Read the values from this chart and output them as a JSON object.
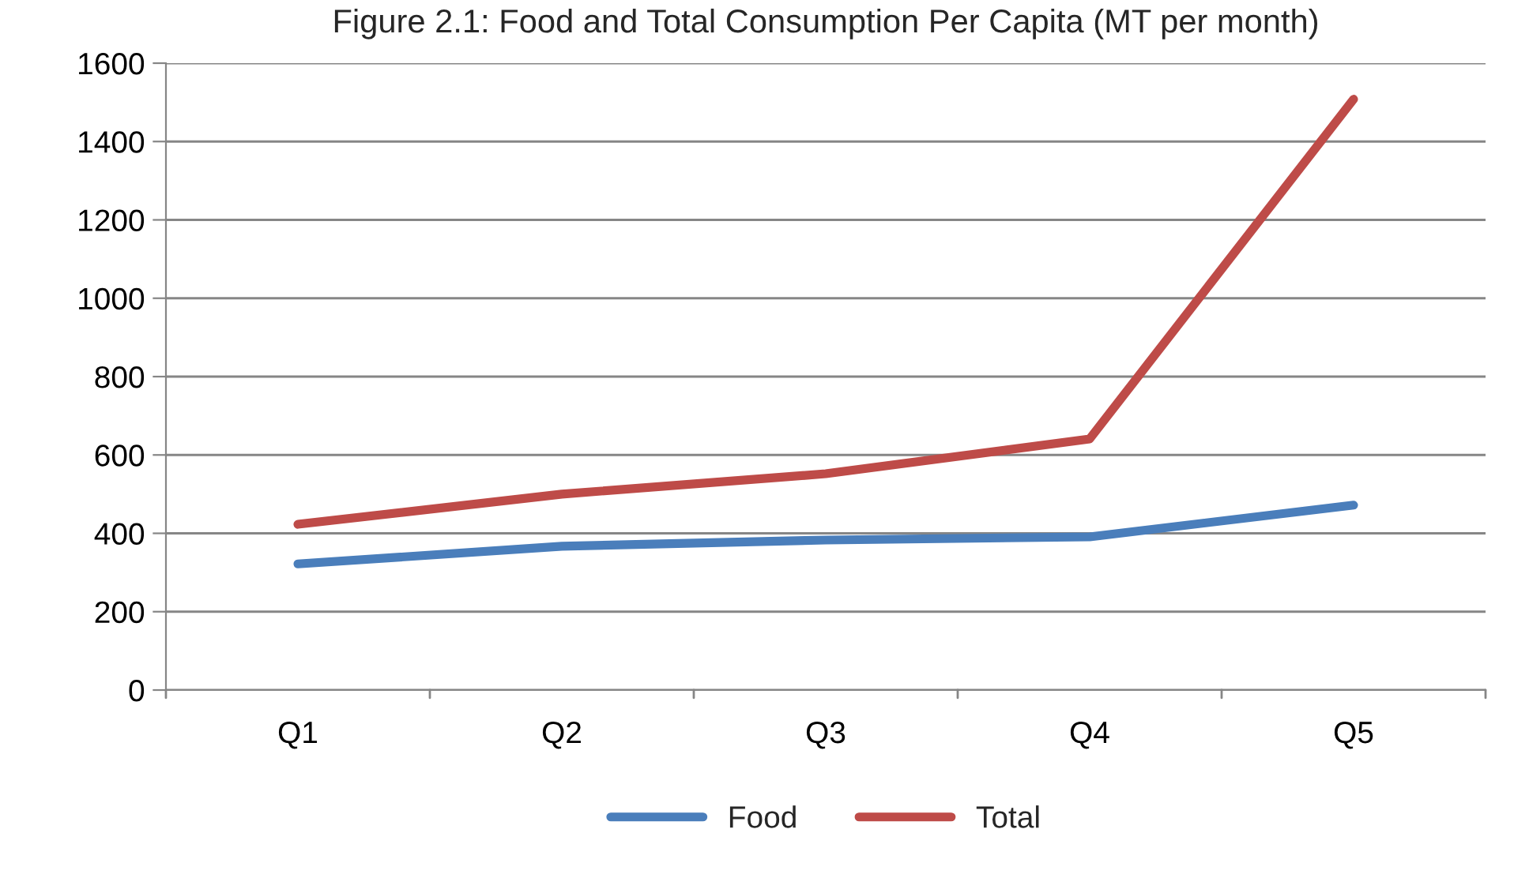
{
  "chart_data": {
    "type": "line",
    "title": "Figure 2.1: Food and Total Consumption Per Capita (MT per month)",
    "categories": [
      "Q1",
      "Q2",
      "Q3",
      "Q4",
      "Q5"
    ],
    "series": [
      {
        "name": "Food",
        "color": "#4a7ebb",
        "values": [
          322,
          367,
          383,
          391,
          472
        ]
      },
      {
        "name": "Total",
        "color": "#be4b48",
        "values": [
          423,
          500,
          552,
          641,
          1508
        ]
      }
    ],
    "ylim": [
      0,
      1600
    ],
    "yticks": [
      0,
      200,
      400,
      600,
      800,
      1000,
      1200,
      1400,
      1600
    ],
    "grid": "y",
    "legend": "bottom",
    "marker": "none",
    "line_style": "solid"
  }
}
